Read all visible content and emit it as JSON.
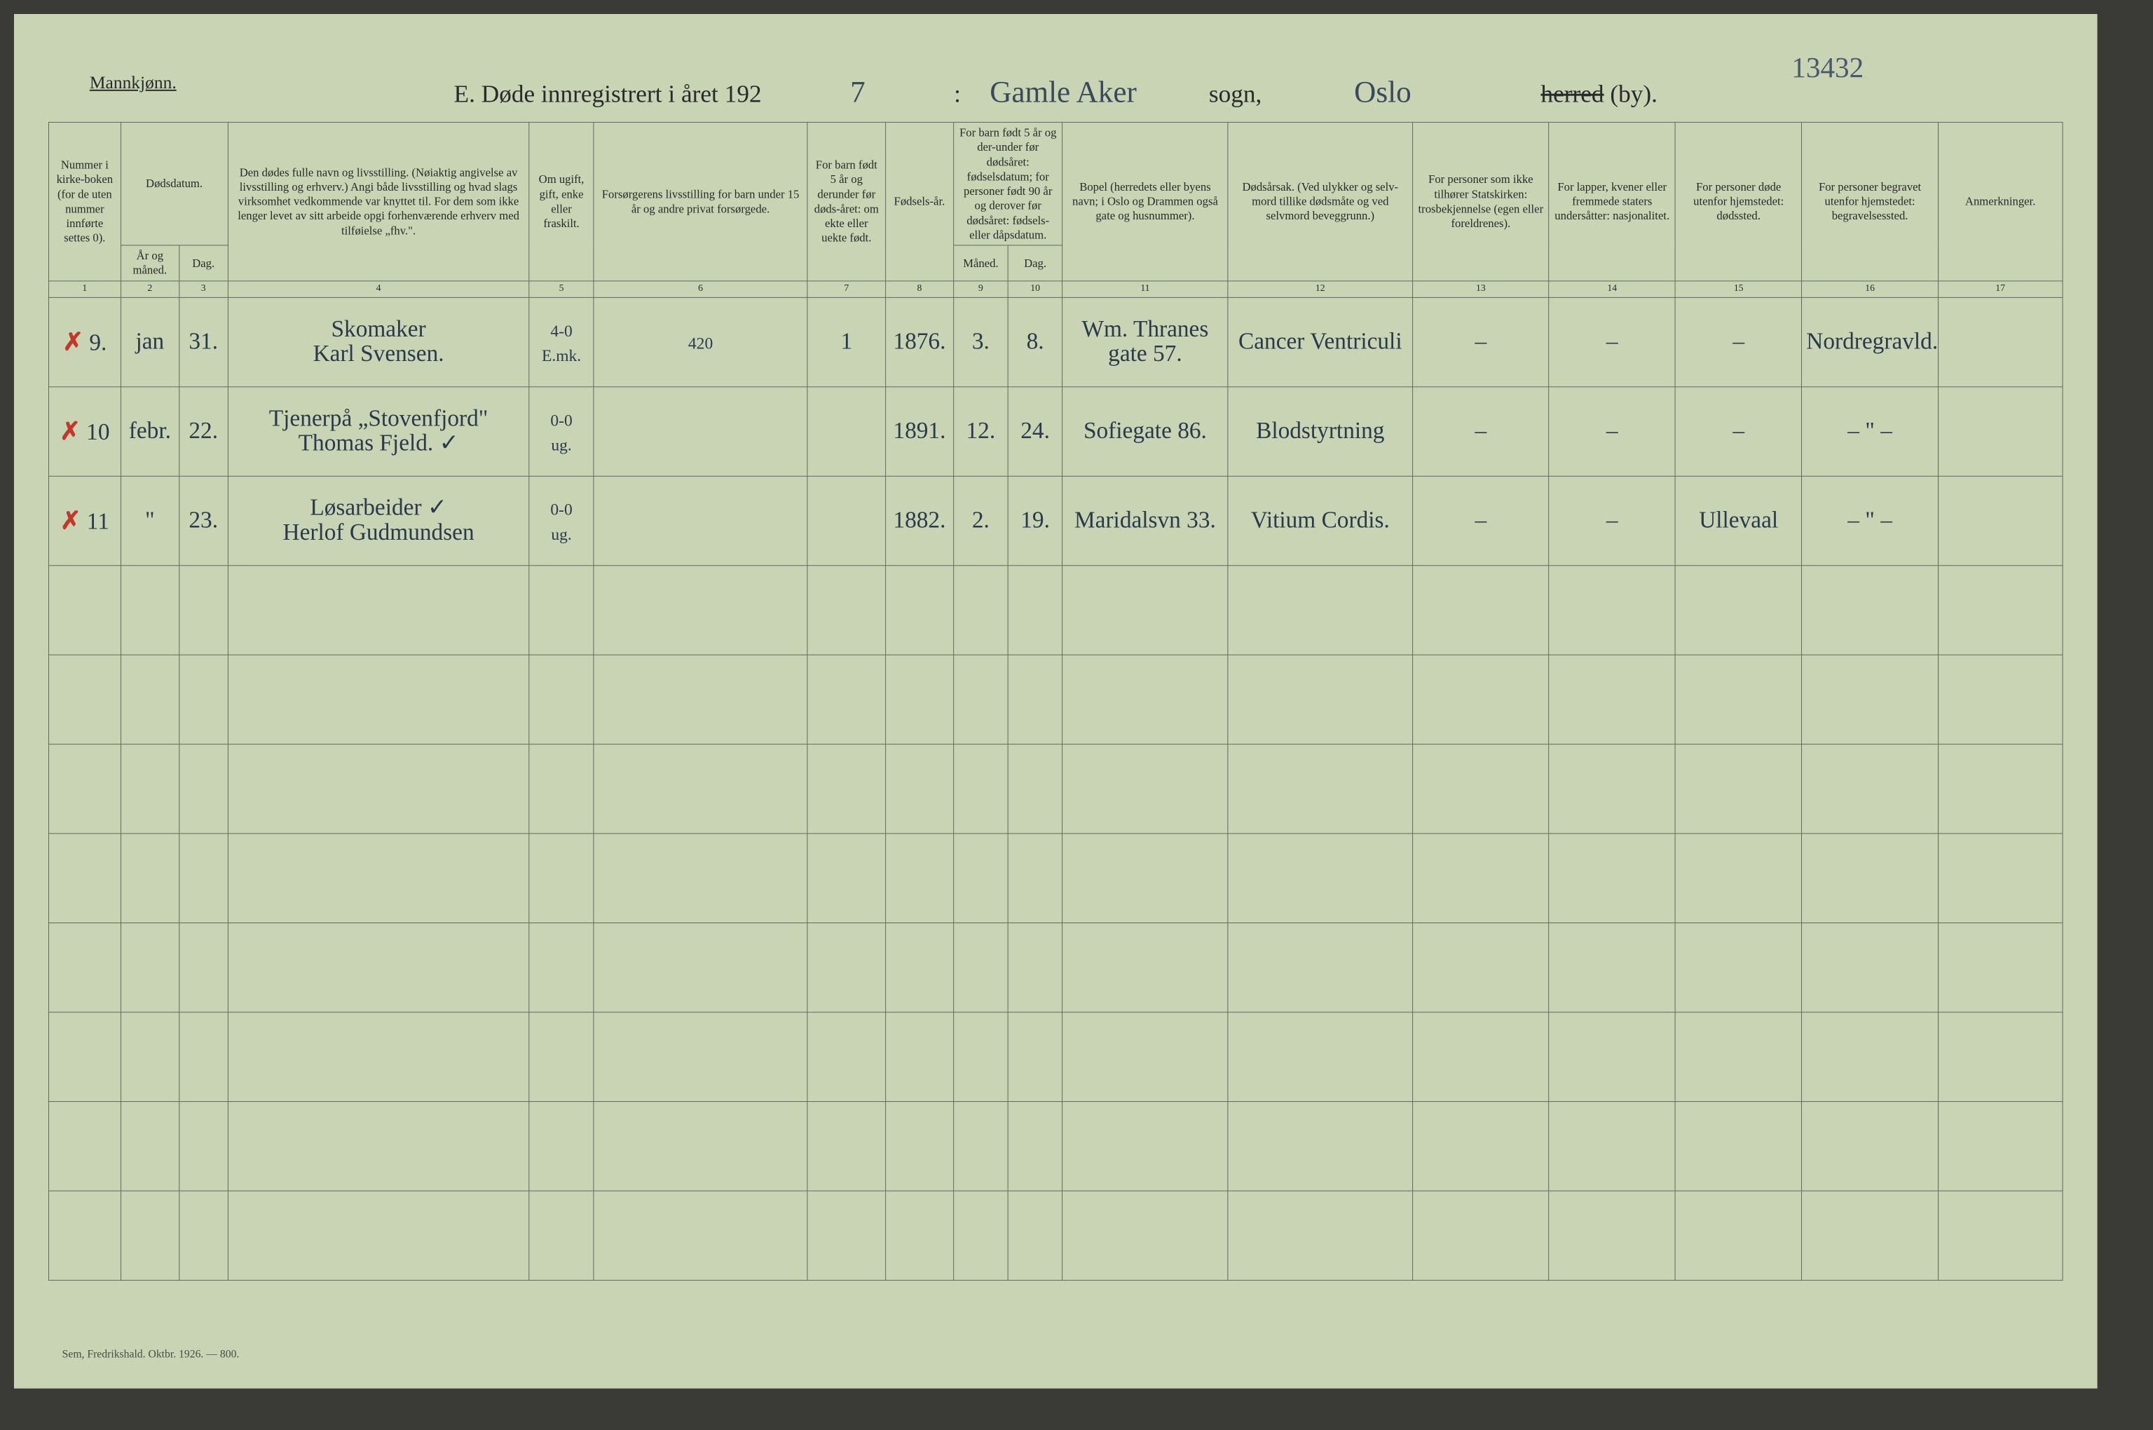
{
  "page": {
    "corner_label": "Mannkjønn.",
    "page_number_top": "13432",
    "title_prefix": "E.   Døde innregistrert i året 192",
    "year_suffix": "7",
    "parish_hw": "Gamle Aker",
    "sogn_label": "sogn,",
    "district_hw": "Oslo",
    "herred_label": "herred",
    "by_label": "(by).",
    "footer": "Sem, Fredrikshald. Oktbr. 1926. — 800."
  },
  "headers": {
    "c1": "Nummer i kirke-boken (for de uten nummer innførte settes 0).",
    "c2_top": "Dødsdatum.",
    "c2a": "År og måned.",
    "c2b": "Dag.",
    "c4": "Den dødes fulle navn og livsstilling. (Nøiaktig angivelse av livsstilling og erhverv.) Angi både livsstilling og hvad slags virksomhet vedkommende var knyttet til. For dem som ikke lenger levet av sitt arbeide opgi forhenværende erhverv med tilføielse „fhv.\".",
    "c5": "Om ugift, gift, enke eller fraskilt.",
    "c6": "Forsørgerens livsstilling for barn under 15 år og andre privat forsørgede.",
    "c7": "For barn født 5 år og derunder før døds-året: om ekte eller uekte født.",
    "c8": "Fødsels-år.",
    "c9_top": "For barn født 5 år og der-under før dødsåret: fødselsdatum; for personer født 90 år og derover før dødsåret: fødsels- eller dåpsdatum.",
    "c9a": "Måned.",
    "c9b": "Dag.",
    "c11": "Bopel (herredets eller byens navn; i Oslo og Drammen også gate og husnummer).",
    "c12": "Dødsårsak. (Ved ulykker og selv-mord tillike dødsmåte og ved selvmord beveggrunn.)",
    "c13": "For personer som ikke tilhører Statskirken: trosbekjennelse (egen eller foreldrenes).",
    "c14": "For lapper, kvener eller fremmede staters undersåtter: nasjonalitet.",
    "c15": "For personer døde utenfor hjemstedet: dødssted.",
    "c16": "For personer begravet utenfor hjemstedet: begravelsessted.",
    "c17": "Anmerkninger."
  },
  "colnums": [
    "1",
    "2",
    "3",
    "4",
    "5",
    "6",
    "7",
    "8",
    "9",
    "10",
    "11",
    "12",
    "13",
    "14",
    "15",
    "16",
    "17"
  ],
  "rows": [
    {
      "mark": "✗",
      "num": "9.",
      "month": "jan",
      "day": "31.",
      "name": "Skomaker\nKarl Svensen.",
      "status": "4-0\nE.mk.",
      "forsorger": "420",
      "c7": "1",
      "year": "1876.",
      "bmonth": "3.",
      "bday": "8.",
      "bopel": "Wm. Thranes gate 57.",
      "cause": "Cancer Ventriculi",
      "c13": "–",
      "c14": "–",
      "c15": "–",
      "c16": "Nordregravld."
    },
    {
      "mark": "✗",
      "num": "10",
      "month": "febr.",
      "day": "22.",
      "name": "Tjenerpå „Stovenfjord\"\nThomas Fjeld. ✓",
      "status": "0-0\nug.",
      "forsorger": "",
      "c7": "",
      "year": "1891.",
      "bmonth": "12.",
      "bday": "24.",
      "bopel": "Sofiegate 86.",
      "cause": "Blodstyrtning",
      "c13": "–",
      "c14": "–",
      "c15": "–",
      "c16": "– \" –"
    },
    {
      "mark": "✗",
      "num": "11",
      "month": "\"",
      "day": "23.",
      "name": "Løsarbeider ✓\nHerlof Gudmundsen",
      "status": "0-0\nug.",
      "forsorger": "",
      "c7": "",
      "year": "1882.",
      "bmonth": "2.",
      "bday": "19.",
      "bopel": "Maridalsvn 33.",
      "cause": "Vitium Cordis.",
      "c13": "–",
      "c14": "–",
      "c15": "Ullevaal",
      "c16": "– \" –"
    }
  ],
  "layout": {
    "col_widths_pct": [
      3.7,
      3.0,
      2.5,
      15.5,
      3.3,
      11.0,
      4.0,
      3.5,
      2.8,
      2.8,
      8.5,
      9.5,
      7.0,
      6.5,
      6.5,
      7.0,
      6.4
    ]
  },
  "colors": {
    "paper": "#c8d4b4",
    "ink": "#2a2a2a",
    "hw_ink": "#2a3a4a",
    "red": "#c0392b",
    "border": "#5a6a5a"
  }
}
